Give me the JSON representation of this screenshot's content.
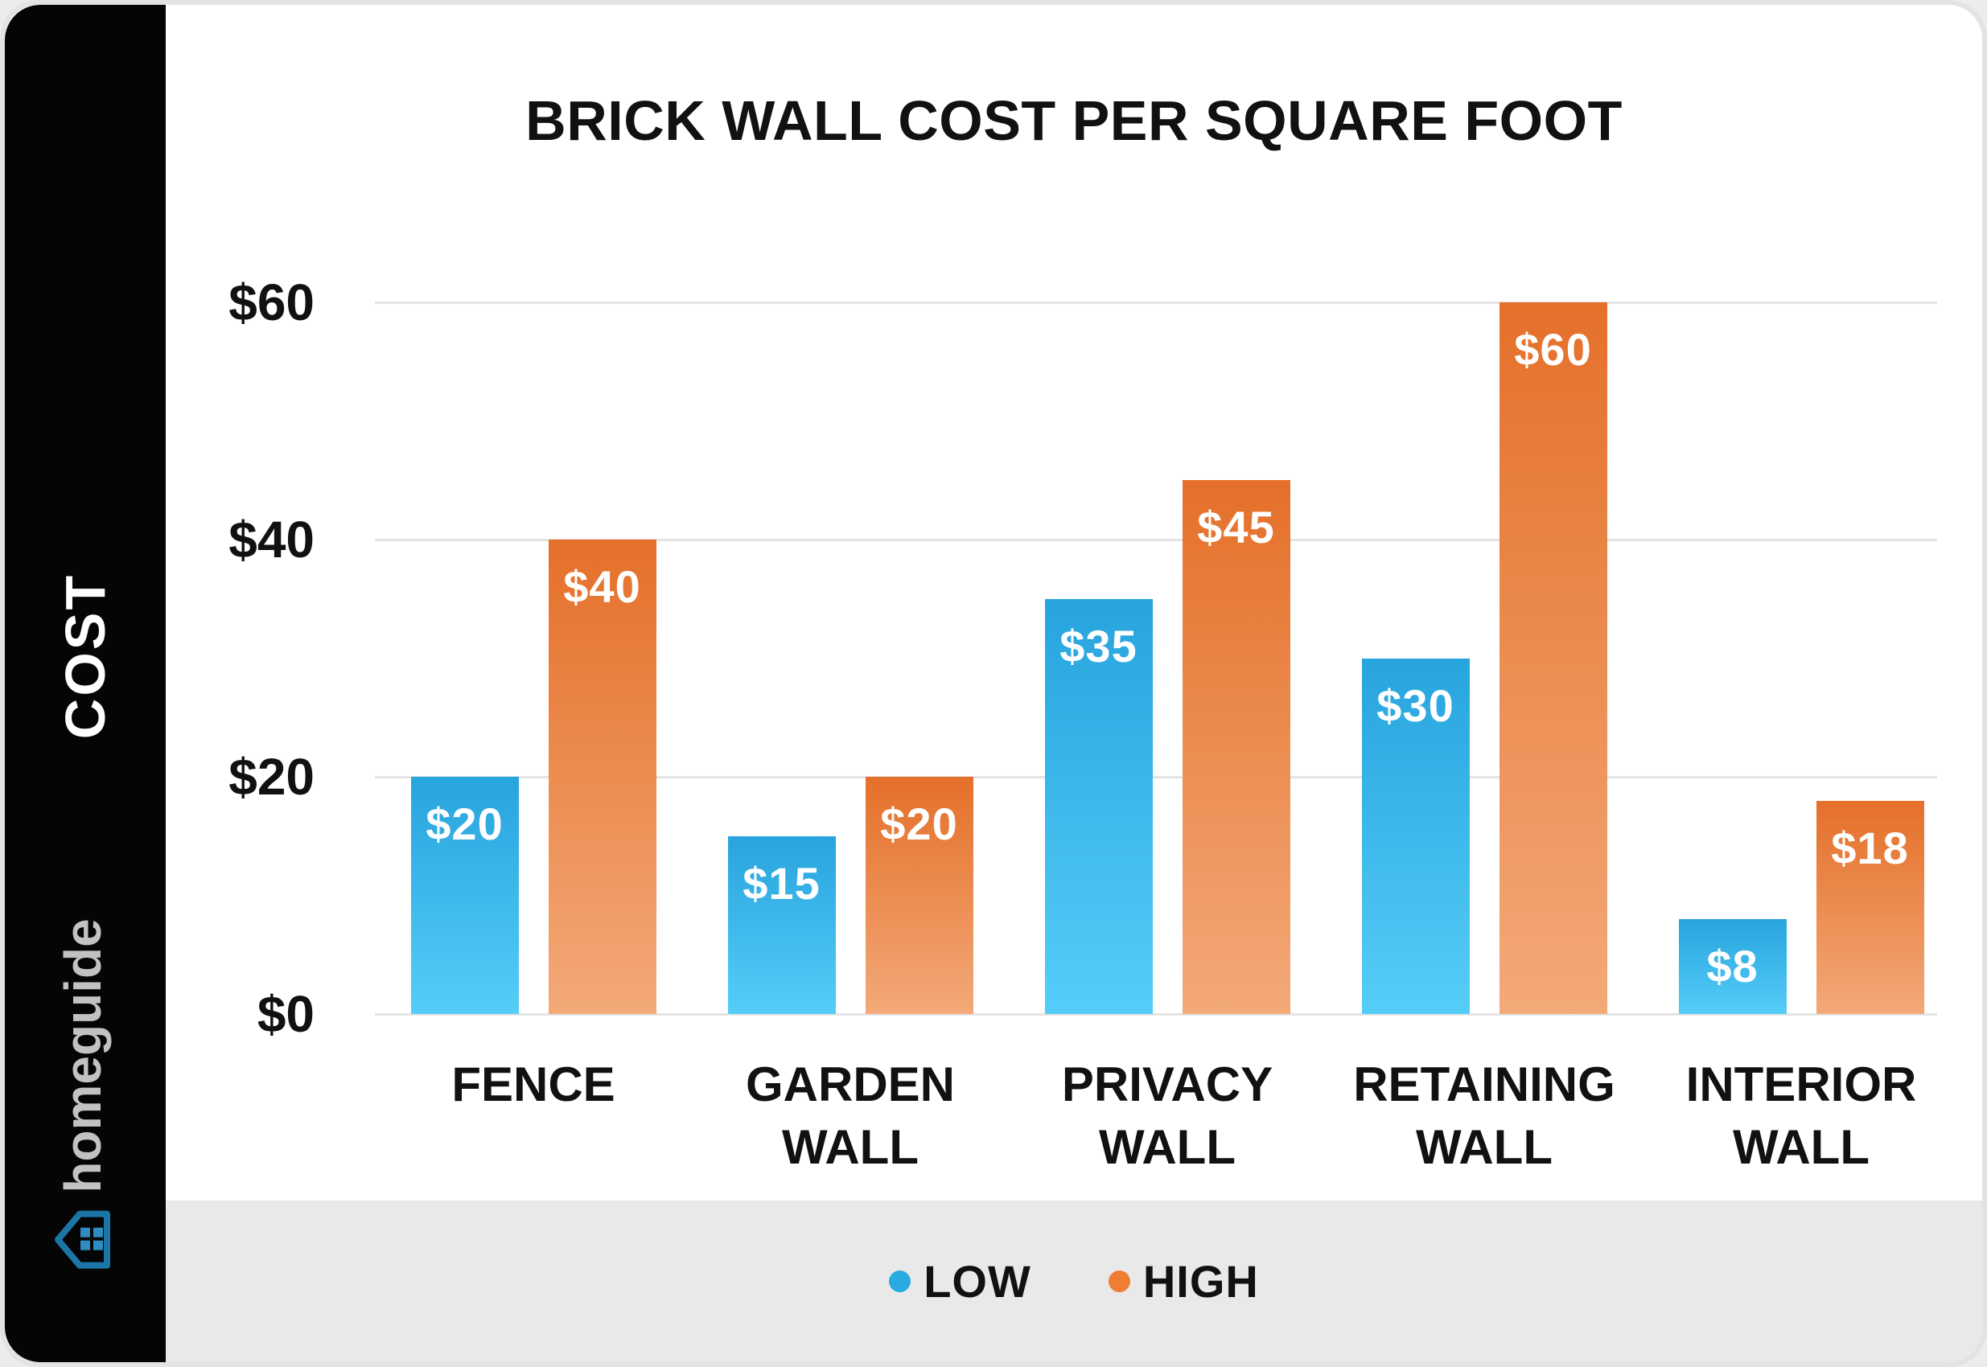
{
  "title": "BRICK WALL COST PER SQUARE FOOT",
  "sidebar": {
    "vertical_label": "COST",
    "brand": "homeguide"
  },
  "y_axis": {
    "ticks": [
      {
        "value": 0,
        "label": "$0"
      },
      {
        "value": 20,
        "label": "$20"
      },
      {
        "value": 40,
        "label": "$40"
      },
      {
        "value": 60,
        "label": "$60"
      }
    ]
  },
  "legend": {
    "items": [
      {
        "label": "LOW",
        "color": "#29ABE2"
      },
      {
        "label": "HIGH",
        "color": "#EF7D33"
      }
    ]
  },
  "chart_data": {
    "type": "bar",
    "title": "BRICK WALL COST PER SQUARE FOOT",
    "categories": [
      "FENCE",
      "GARDEN WALL",
      "PRIVACY WALL",
      "RETAINING WALL",
      "INTERIOR WALL"
    ],
    "series": [
      {
        "name": "LOW",
        "values": [
          20,
          15,
          35,
          30,
          8
        ],
        "labels": [
          "$20",
          "$15",
          "$35",
          "$30",
          "$8"
        ]
      },
      {
        "name": "HIGH",
        "values": [
          40,
          20,
          45,
          60,
          18
        ],
        "labels": [
          "$40",
          "$20",
          "$45",
          "$60",
          "$18"
        ]
      }
    ],
    "xlabel": "",
    "ylabel": "COST",
    "ylim": [
      0,
      60
    ],
    "yticks": [
      0,
      20,
      40,
      60
    ],
    "grid": true,
    "legend_position": "bottom"
  },
  "colors": {
    "low_bar_top": "#28A4DE",
    "low_bar_bottom": "#55CDF8",
    "high_bar_top": "#E4702A",
    "high_bar_bottom": "#F3A978",
    "legend_low_dot": "#29ABE2",
    "legend_high_dot": "#EF7D33",
    "grid": "#E4E4E4",
    "text": "#111111",
    "bar_label": "#FFFFFF",
    "sidebar_bg": "#050505",
    "sidebar_text": "#FFFFFF",
    "brand_text": "#C2C2C2",
    "brand_outline": "#1B76A6",
    "brand_window": "#2E8CC0",
    "footer_strip": "#E9E9E9",
    "card_border": "#E3E3E3",
    "page_bg": "#ECECEC"
  }
}
